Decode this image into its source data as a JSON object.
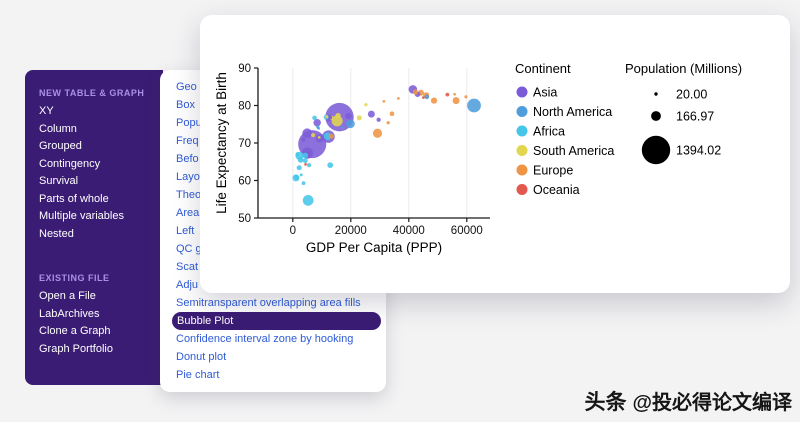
{
  "watermark": {
    "brand": "头条",
    "handle": "@投必得论文编译"
  },
  "sidebar": {
    "sections": [
      {
        "header": "NEW TABLE & GRAPH",
        "items": [
          "XY",
          "Column",
          "Grouped",
          "Contingency",
          "Survival",
          "Parts of whole",
          "Multiple variables",
          "Nested"
        ]
      },
      {
        "header": "EXISTING FILE",
        "items": [
          "Open a File",
          "LabArchives",
          "Clone a Graph",
          "Graph Portfolio"
        ]
      }
    ]
  },
  "examples_menu": {
    "truncated_items": [
      "Geo",
      "Box",
      "Popu",
      "Freq",
      "Befo",
      "Layo",
      "Theo",
      "Area",
      "Left",
      "QC g",
      "Scat",
      "Adju"
    ],
    "items": [
      "Semitransparent overlapping area fills",
      "Bubble Plot",
      "Confidence interval zone by hooking",
      "Donut plot",
      "Pie chart"
    ],
    "selected": "Bubble Plot"
  },
  "chart_data": {
    "type": "scatter",
    "subtype": "bubble",
    "xlabel": "GDP Per Capita  (PPP)",
    "ylabel": "Life Expectancy at Birth",
    "xlim": [
      -12000,
      68000
    ],
    "ylim": [
      50,
      90
    ],
    "xticks": [
      0,
      20000,
      40000,
      60000
    ],
    "yticks": [
      50,
      60,
      70,
      80,
      90
    ],
    "grid": "light vertical gridlines at x ticks",
    "legend": {
      "position": "right",
      "continent_title": "Continent",
      "continents": [
        {
          "name": "Asia",
          "color": "#7c5cd6"
        },
        {
          "name": "North America",
          "color": "#4f9ddb"
        },
        {
          "name": "Africa",
          "color": "#45c6e8"
        },
        {
          "name": "South America",
          "color": "#e3d64f"
        },
        {
          "name": "Europe",
          "color": "#ef9443"
        },
        {
          "name": "Oceania",
          "color": "#e2574e"
        }
      ],
      "size_title": "Population (Millions)",
      "size_items": [
        {
          "label": "20.00",
          "pop": 20.0
        },
        {
          "label": "166.97",
          "pop": 166.97
        },
        {
          "label": "1394.02",
          "pop": 1394.02
        }
      ]
    },
    "points": [
      {
        "continent": "Asia",
        "x": 6700,
        "y": 69.7,
        "pop": 1366.0
      },
      {
        "continent": "Asia",
        "x": 16100,
        "y": 76.9,
        "pop": 1398.0
      },
      {
        "continent": "Asia",
        "x": 41400,
        "y": 84.3,
        "pop": 126.3
      },
      {
        "continent": "Asia",
        "x": 43000,
        "y": 83.0,
        "pop": 51.7
      },
      {
        "continent": "Asia",
        "x": 12300,
        "y": 71.7,
        "pop": 270.6
      },
      {
        "continent": "Asia",
        "x": 5000,
        "y": 67.3,
        "pop": 216.6
      },
      {
        "continent": "Asia",
        "x": 4950,
        "y": 72.6,
        "pop": 163.0
      },
      {
        "continent": "Asia",
        "x": 8400,
        "y": 75.4,
        "pop": 96.5
      },
      {
        "continent": "Asia",
        "x": 19200,
        "y": 77.2,
        "pop": 69.6
      },
      {
        "continent": "Asia",
        "x": 9300,
        "y": 71.2,
        "pop": 108.1
      },
      {
        "continent": "Asia",
        "x": 27100,
        "y": 77.7,
        "pop": 83.4
      },
      {
        "continent": "Asia",
        "x": 29600,
        "y": 76.2,
        "pop": 31.9
      },
      {
        "continent": "Asia",
        "x": 12400,
        "y": 76.7,
        "pop": 82.9
      },
      {
        "continent": "Asia",
        "x": 3600,
        "y": 70.9,
        "pop": 28.6
      },
      {
        "continent": "Asia",
        "x": 5100,
        "y": 67.1,
        "pop": 54.0
      },
      {
        "continent": "Asia",
        "x": 13000,
        "y": 76.8,
        "pop": 21.8
      },
      {
        "continent": "North America",
        "x": 62500,
        "y": 80.0,
        "pop": 328.2
      },
      {
        "continent": "North America",
        "x": 46200,
        "y": 82.3,
        "pop": 37.6
      },
      {
        "continent": "North America",
        "x": 19900,
        "y": 75.1,
        "pop": 127.6
      },
      {
        "continent": "North America",
        "x": 8900,
        "y": 73.9,
        "pop": 11.3
      },
      {
        "continent": "North America",
        "x": 8600,
        "y": 74.3,
        "pop": 16.6
      },
      {
        "continent": "North America",
        "x": 17000,
        "y": 74.1,
        "pop": 10.7
      },
      {
        "continent": "Africa",
        "x": 5300,
        "y": 54.7,
        "pop": 201.0
      },
      {
        "continent": "Africa",
        "x": 2300,
        "y": 66.6,
        "pop": 112.1
      },
      {
        "continent": "Africa",
        "x": 12000,
        "y": 71.8,
        "pop": 100.4
      },
      {
        "continent": "Africa",
        "x": 1100,
        "y": 60.7,
        "pop": 86.8
      },
      {
        "continent": "Africa",
        "x": 2700,
        "y": 65.5,
        "pop": 58.0
      },
      {
        "continent": "Africa",
        "x": 12900,
        "y": 64.1,
        "pop": 58.6
      },
      {
        "continent": "Africa",
        "x": 4300,
        "y": 66.7,
        "pop": 52.6
      },
      {
        "continent": "Africa",
        "x": 2200,
        "y": 63.4,
        "pop": 44.3
      },
      {
        "continent": "Africa",
        "x": 11500,
        "y": 76.9,
        "pop": 43.1
      },
      {
        "continent": "Africa",
        "x": 4300,
        "y": 65.3,
        "pop": 42.8
      },
      {
        "continent": "Africa",
        "x": 7500,
        "y": 76.7,
        "pop": 36.5
      },
      {
        "continent": "Africa",
        "x": 5600,
        "y": 64.1,
        "pop": 30.4
      },
      {
        "continent": "Africa",
        "x": 1300,
        "y": 60.9,
        "pop": 30.4
      },
      {
        "continent": "Africa",
        "x": 3700,
        "y": 59.3,
        "pop": 25.9
      },
      {
        "continent": "Africa",
        "x": 1600,
        "y": 67.0,
        "pop": 27.0
      },
      {
        "continent": "Africa",
        "x": 2900,
        "y": 61.5,
        "pop": 14.6
      },
      {
        "continent": "South America",
        "x": 15300,
        "y": 75.9,
        "pop": 211.0
      },
      {
        "continent": "South America",
        "x": 15600,
        "y": 77.3,
        "pop": 50.3
      },
      {
        "continent": "South America",
        "x": 22900,
        "y": 76.7,
        "pop": 44.9
      },
      {
        "continent": "South America",
        "x": 13400,
        "y": 76.7,
        "pop": 32.5
      },
      {
        "continent": "South America",
        "x": 7000,
        "y": 72.1,
        "pop": 28.5
      },
      {
        "continent": "South America",
        "x": 25200,
        "y": 80.2,
        "pop": 19.0
      },
      {
        "continent": "South America",
        "x": 11700,
        "y": 77.0,
        "pop": 17.4
      },
      {
        "continent": "South America",
        "x": 9100,
        "y": 71.5,
        "pop": 11.5
      },
      {
        "continent": "Europe",
        "x": 56300,
        "y": 81.3,
        "pop": 83.1
      },
      {
        "continent": "Europe",
        "x": 48700,
        "y": 81.3,
        "pop": 66.8
      },
      {
        "continent": "Europe",
        "x": 46000,
        "y": 82.7,
        "pop": 67.2
      },
      {
        "continent": "Europe",
        "x": 44200,
        "y": 83.4,
        "pop": 60.3
      },
      {
        "continent": "Europe",
        "x": 42300,
        "y": 83.6,
        "pop": 47.1
      },
      {
        "continent": "Europe",
        "x": 34200,
        "y": 77.8,
        "pop": 38.0
      },
      {
        "continent": "Europe",
        "x": 29200,
        "y": 72.6,
        "pop": 144.4
      },
      {
        "continent": "Europe",
        "x": 13300,
        "y": 71.8,
        "pop": 44.4
      },
      {
        "continent": "Europe",
        "x": 59700,
        "y": 82.3,
        "pop": 17.3
      },
      {
        "continent": "Europe",
        "x": 55800,
        "y": 83.0,
        "pop": 10.2
      },
      {
        "continent": "Europe",
        "x": 31400,
        "y": 81.1,
        "pop": 10.7
      },
      {
        "continent": "Europe",
        "x": 36400,
        "y": 81.9,
        "pop": 10.3
      },
      {
        "continent": "Europe",
        "x": 32900,
        "y": 75.4,
        "pop": 19.4
      },
      {
        "continent": "Oceania",
        "x": 53300,
        "y": 82.9,
        "pop": 25.4
      },
      {
        "continent": "Oceania",
        "x": 45000,
        "y": 82.1,
        "pop": 4.9
      },
      {
        "continent": "Oceania",
        "x": 4400,
        "y": 64.3,
        "pop": 8.8
      }
    ]
  }
}
